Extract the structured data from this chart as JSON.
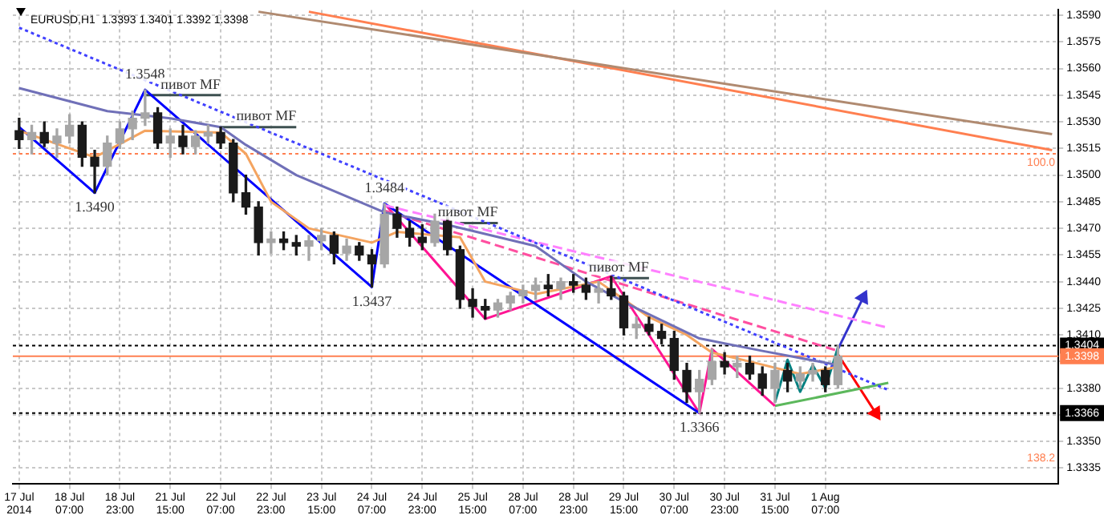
{
  "chart_data": {
    "type": "candlestick",
    "title": "EURUSD,H1  1.3393 1.3401 1.3392 1.3398",
    "colors": [
      "#1a1a1a",
      "#a6a6a6",
      "#1a1a1a",
      "#a6a6a6",
      "#a6a6a6",
      "#1a1a1a",
      "#1a1a1a",
      "#a6a6a6",
      "#a6a6a6",
      "#a6a6a6",
      "#a6a6a6",
      "#1a1a1a",
      "#a6a6a6",
      "#1a1a1a",
      "#a6a6a6",
      "#a6a6a6",
      "#1a1a1a",
      "#1a1a1a",
      "#1a1a1a",
      "#1a1a1a",
      "#a6a6a6",
      "#1a1a1a",
      "#1a1a1a",
      "#a6a6a6",
      "#a6a6a6",
      "#1a1a1a",
      "#a6a6a6",
      "#1a1a1a",
      "#1a1a1a",
      "#a6a6a6",
      "#1a1a1a",
      "#1a1a1a",
      "#1a1a1a",
      "#a6a6a6",
      "#1a1a1a",
      "#1a1a1a",
      "#1a1a1a",
      "#1a1a1a",
      "#a6a6a6",
      "#a6a6a6",
      "#a6a6a6",
      "#a6a6a6",
      "#1a1a1a",
      "#a6a6a6",
      "#1a1a1a",
      "#1a1a1a",
      "#a6a6a6",
      "#1a1a1a",
      "#1a1a1a",
      "#a6a6a6",
      "#1a1a1a",
      "#1a1a1a",
      "#1a1a1a",
      "#1a1a1a",
      "#a6a6a6",
      "#a6a6a6",
      "#1a1a1a",
      "#a6a6a6",
      "#1a1a1a",
      "#1a1a1a",
      "#a6a6a6",
      "#1a1a1a",
      "#a6a6a6",
      "#a6a6a6",
      "#1a1a1a",
      "#a6a6a6",
      null,
      null,
      null,
      null,
      null,
      null,
      null,
      null,
      null,
      null,
      null,
      null,
      null,
      null,
      null,
      null,
      null
    ],
    "categories": [
      "17 Jul 2014",
      null,
      null,
      null,
      "18 Jul 07:00",
      null,
      null,
      null,
      "18 Jul 23:00",
      null,
      null,
      null,
      "21 Jul 15:00",
      null,
      null,
      null,
      "22 Jul 07:00",
      null,
      null,
      null,
      "22 Jul 23:00",
      null,
      null,
      null,
      "23 Jul 15:00",
      null,
      null,
      null,
      "24 Jul 07:00",
      null,
      null,
      null,
      "24 Jul 23:00",
      null,
      null,
      null,
      "25 Jul 15:00",
      null,
      null,
      null,
      "28 Jul 07:00",
      null,
      null,
      null,
      "28 Jul 23:00",
      null,
      null,
      null,
      "29 Jul 15:00",
      null,
      null,
      null,
      "30 Jul 07:00",
      null,
      null,
      null,
      "30 Jul 23:00",
      null,
      null,
      null,
      "31 Jul 15:00",
      null,
      null,
      null,
      "1 Aug 07:00",
      null,
      null,
      null,
      null,
      null,
      null,
      null,
      null,
      null,
      null,
      null,
      null,
      null,
      null,
      null,
      null,
      null,
      null
    ],
    "ohlc": [
      [
        1.3525,
        1.3532,
        1.3515,
        1.352
      ],
      [
        1.352,
        1.3528,
        1.3512,
        1.3524
      ],
      [
        1.3524,
        1.353,
        1.3516,
        1.3518
      ],
      [
        1.3518,
        1.3526,
        1.351,
        1.3522
      ],
      [
        1.3522,
        1.3534,
        1.3518,
        1.3528
      ],
      [
        1.3528,
        1.353,
        1.3505,
        1.351
      ],
      [
        1.351,
        1.3514,
        1.349,
        1.3505
      ],
      [
        1.3505,
        1.3522,
        1.35,
        1.3518
      ],
      [
        1.3518,
        1.353,
        1.3515,
        1.3526
      ],
      [
        1.3526,
        1.3536,
        1.352,
        1.3532
      ],
      [
        1.3532,
        1.3548,
        1.3528,
        1.3535
      ],
      [
        1.3535,
        1.3538,
        1.3515,
        1.3518
      ],
      [
        1.3518,
        1.3526,
        1.351,
        1.3522
      ],
      [
        1.3522,
        1.3528,
        1.3512,
        1.3516
      ],
      [
        1.3516,
        1.3525,
        1.3512,
        1.3522
      ],
      [
        1.3522,
        1.3528,
        1.3518,
        1.3524
      ],
      [
        1.3524,
        1.3527,
        1.3515,
        1.3518
      ],
      [
        1.3518,
        1.352,
        1.3485,
        1.349
      ],
      [
        1.349,
        1.35,
        1.3478,
        1.3482
      ],
      [
        1.3482,
        1.3485,
        1.3455,
        1.3462
      ],
      [
        1.3462,
        1.3468,
        1.3456,
        1.3464
      ],
      [
        1.3464,
        1.3468,
        1.3458,
        1.3462
      ],
      [
        1.3462,
        1.3466,
        1.3455,
        1.346
      ],
      [
        1.346,
        1.3466,
        1.3452,
        1.3463
      ],
      [
        1.3463,
        1.347,
        1.3458,
        1.3466
      ],
      [
        1.3466,
        1.3468,
        1.345,
        1.3456
      ],
      [
        1.3456,
        1.3464,
        1.3452,
        1.346
      ],
      [
        1.346,
        1.3462,
        1.3452,
        1.3455
      ],
      [
        1.3455,
        1.3458,
        1.3437,
        1.345
      ],
      [
        1.345,
        1.3484,
        1.3448,
        1.3478
      ],
      [
        1.3478,
        1.3482,
        1.3465,
        1.347
      ],
      [
        1.347,
        1.3474,
        1.346,
        1.3465
      ],
      [
        1.3465,
        1.3472,
        1.3458,
        1.3462
      ],
      [
        1.3462,
        1.3478,
        1.346,
        1.3474
      ],
      [
        1.3474,
        1.3476,
        1.3455,
        1.3458
      ],
      [
        1.3458,
        1.346,
        1.3425,
        1.343
      ],
      [
        1.343,
        1.3436,
        1.342,
        1.3426
      ],
      [
        1.3426,
        1.343,
        1.3419,
        1.3424
      ],
      [
        1.3424,
        1.343,
        1.342,
        1.3428
      ],
      [
        1.3428,
        1.3434,
        1.3424,
        1.3432
      ],
      [
        1.3432,
        1.3438,
        1.3428,
        1.3435
      ],
      [
        1.3435,
        1.3442,
        1.343,
        1.3438
      ],
      [
        1.3438,
        1.3444,
        1.3432,
        1.3436
      ],
      [
        1.3436,
        1.3442,
        1.343,
        1.344
      ],
      [
        1.344,
        1.3444,
        1.3434,
        1.3438
      ],
      [
        1.3438,
        1.3442,
        1.343,
        1.3434
      ],
      [
        1.3434,
        1.344,
        1.3428,
        1.3436
      ],
      [
        1.3436,
        1.3443,
        1.343,
        1.3432
      ],
      [
        1.3432,
        1.3434,
        1.341,
        1.3414
      ],
      [
        1.3414,
        1.342,
        1.3408,
        1.3416
      ],
      [
        1.3416,
        1.342,
        1.341,
        1.3412
      ],
      [
        1.3412,
        1.3416,
        1.3405,
        1.3408
      ],
      [
        1.3408,
        1.3412,
        1.3385,
        1.339
      ],
      [
        1.339,
        1.3394,
        1.3372,
        1.3378
      ],
      [
        1.3378,
        1.339,
        1.3366,
        1.3385
      ],
      [
        1.3385,
        1.3402,
        1.3382,
        1.3395
      ],
      [
        1.3395,
        1.34,
        1.3388,
        1.3392
      ],
      [
        1.3392,
        1.3398,
        1.3386,
        1.3394
      ],
      [
        1.3394,
        1.3398,
        1.3385,
        1.3388
      ],
      [
        1.3388,
        1.3392,
        1.3376,
        1.338
      ],
      [
        1.338,
        1.3394,
        1.3372,
        1.339
      ],
      [
        1.339,
        1.3394,
        1.3378,
        1.3384
      ],
      [
        1.3384,
        1.3392,
        1.338,
        1.3388
      ],
      [
        1.3388,
        1.3394,
        1.3384,
        1.339
      ],
      [
        1.339,
        1.3392,
        1.3378,
        1.3382
      ],
      [
        1.3382,
        1.3404,
        1.338,
        1.3398
      ],
      null,
      null,
      null,
      null,
      null,
      null,
      null,
      null,
      null,
      null,
      null,
      null,
      null,
      null,
      null,
      null,
      null
    ],
    "ylim": [
      1.3326,
      1.3593
    ],
    "yticks": [
      {
        "value": 1.3335,
        "label": "1.3335"
      },
      {
        "value": 1.335,
        "label": "1.3350"
      },
      {
        "value": 1.3365,
        "label": null
      },
      {
        "value": 1.338,
        "label": "1.3380"
      },
      {
        "value": 1.3395,
        "label": null
      },
      {
        "value": 1.341,
        "label": "1.3410"
      },
      {
        "value": 1.3425,
        "label": "1.3425"
      },
      {
        "value": 1.344,
        "label": "1.3440"
      },
      {
        "value": 1.3455,
        "label": "1.3455"
      },
      {
        "value": 1.347,
        "label": "1.3470"
      },
      {
        "value": 1.3485,
        "label": "1.3485"
      },
      {
        "value": 1.35,
        "label": "1.3500"
      },
      {
        "value": 1.3515,
        "label": "1.3515"
      },
      {
        "value": 1.353,
        "label": "1.3530"
      },
      {
        "value": 1.3545,
        "label": "1.3545"
      },
      {
        "value": 1.356,
        "label": "1.3560"
      },
      {
        "value": 1.3575,
        "label": "1.3575"
      },
      {
        "value": 1.359,
        "label": "1.3590"
      }
    ],
    "grid": true,
    "series": [
      {
        "type": "line",
        "color": "#7070b8",
        "values": [
          1.3549,
          null,
          null,
          null,
          null,
          null,
          null,
          1.3536,
          null,
          null,
          null,
          null,
          1.3532,
          null,
          null,
          null,
          1.3527,
          null,
          1.3517,
          null,
          null,
          null,
          1.35,
          null,
          null,
          null,
          null,
          null,
          null,
          1.3479,
          null,
          null,
          null,
          null,
          1.3472,
          null,
          null,
          null,
          null,
          null,
          null,
          1.346,
          null,
          null,
          null,
          1.344,
          null,
          null,
          null,
          1.3425,
          null,
          null,
          null,
          null,
          1.3408,
          null,
          null,
          null,
          null,
          1.3401,
          null,
          null,
          null,
          null,
          null,
          1.3393,
          null,
          null,
          null,
          null,
          null,
          null,
          null,
          null,
          null,
          null,
          null,
          null,
          null,
          null,
          null,
          null,
          null
        ]
      },
      {
        "type": "line",
        "color": "#f4a460",
        "values": [
          1.3525,
          null,
          null,
          null,
          null,
          null,
          1.351,
          null,
          null,
          null,
          1.3525,
          null,
          null,
          null,
          null,
          null,
          1.3524,
          null,
          1.3512,
          null,
          1.3485,
          null,
          null,
          1.347,
          null,
          null,
          null,
          null,
          1.3462,
          null,
          1.3468,
          null,
          null,
          null,
          null,
          1.3465,
          null,
          1.344,
          null,
          null,
          null,
          1.3433,
          null,
          null,
          null,
          null,
          1.344,
          null,
          null,
          null,
          1.342,
          null,
          null,
          1.341,
          null,
          1.34,
          null,
          null,
          1.3395,
          null,
          null,
          null,
          1.3388,
          null,
          null,
          1.3392,
          null,
          null,
          null,
          null,
          null,
          null,
          null,
          null,
          null,
          null,
          null,
          null,
          null,
          null,
          null,
          null,
          null
        ]
      },
      {
        "type": "line",
        "color": "#4040ff",
        "line_style": "dotted",
        "values": [
          1.3583,
          null,
          null,
          null,
          null,
          null,
          null,
          null,
          null,
          null,
          null,
          null,
          null,
          null,
          null,
          null,
          null,
          null,
          null,
          null,
          null,
          null,
          null,
          null,
          null,
          null,
          null,
          null,
          null,
          null,
          null,
          null,
          null,
          null,
          null,
          null,
          null,
          null,
          null,
          null,
          null,
          null,
          null,
          null,
          null,
          null,
          null,
          null,
          null,
          null,
          null,
          null,
          null,
          null,
          null,
          null,
          null,
          null,
          null,
          null,
          null,
          null,
          null,
          null,
          null,
          null,
          null,
          null,
          null,
          1.3379,
          null,
          null,
          null,
          null,
          null,
          null,
          null,
          null,
          null,
          null,
          null,
          null,
          null
        ]
      },
      {
        "type": "line",
        "color": "#ff80ff",
        "line_style": "dashed",
        "values": [
          null,
          null,
          null,
          null,
          null,
          null,
          null,
          null,
          null,
          null,
          null,
          null,
          null,
          null,
          null,
          null,
          null,
          null,
          null,
          null,
          null,
          null,
          null,
          null,
          null,
          null,
          null,
          null,
          null,
          1.3483,
          null,
          null,
          null,
          null,
          null,
          null,
          null,
          null,
          null,
          null,
          null,
          null,
          null,
          null,
          null,
          null,
          null,
          null,
          null,
          null,
          null,
          null,
          null,
          null,
          null,
          null,
          null,
          null,
          null,
          null,
          null,
          null,
          null,
          null,
          null,
          null,
          null,
          null,
          null,
          1.3414,
          null,
          null,
          null,
          null,
          null,
          null,
          null,
          null,
          null,
          null,
          null,
          null,
          null
        ]
      },
      {
        "type": "line",
        "color": "#ff4fa0",
        "line_style": "dashed",
        "values": [
          null,
          null,
          null,
          null,
          null,
          null,
          null,
          null,
          null,
          null,
          null,
          null,
          null,
          null,
          null,
          null,
          null,
          null,
          null,
          null,
          null,
          null,
          null,
          null,
          null,
          null,
          null,
          null,
          null,
          1.348,
          null,
          null,
          null,
          null,
          null,
          null,
          null,
          null,
          null,
          null,
          null,
          null,
          null,
          null,
          null,
          null,
          null,
          null,
          null,
          null,
          null,
          null,
          null,
          null,
          null,
          null,
          null,
          null,
          null,
          null,
          null,
          null,
          null,
          null,
          null,
          1.3401,
          null,
          null,
          null,
          null,
          null,
          null,
          null,
          null,
          null,
          null,
          null,
          null,
          null,
          null,
          null,
          null,
          null
        ]
      },
      {
        "type": "line",
        "color": "#b08a70",
        "values": [
          null,
          null,
          null,
          null,
          null,
          null,
          null,
          null,
          null,
          null,
          null,
          null,
          null,
          null,
          null,
          null,
          null,
          null,
          null,
          1.3592,
          null,
          null,
          null,
          null,
          null,
          null,
          null,
          null,
          null,
          null,
          null,
          null,
          null,
          null,
          null,
          null,
          null,
          null,
          null,
          null,
          null,
          null,
          null,
          null,
          null,
          null,
          null,
          null,
          null,
          null,
          null,
          null,
          null,
          null,
          null,
          null,
          null,
          null,
          null,
          null,
          null,
          null,
          null,
          null,
          null,
          null,
          null,
          null,
          null,
          null,
          null,
          null,
          null,
          null,
          null,
          null,
          null,
          null,
          null,
          null,
          null,
          null,
          1.3523
        ]
      },
      {
        "type": "line",
        "color": "#ff7f50",
        "values": [
          null,
          null,
          null,
          null,
          null,
          null,
          null,
          null,
          null,
          null,
          null,
          null,
          null,
          null,
          null,
          null,
          null,
          null,
          null,
          null,
          null,
          null,
          null,
          1.3592,
          null,
          null,
          null,
          null,
          null,
          null,
          null,
          null,
          null,
          null,
          null,
          null,
          null,
          null,
          null,
          null,
          null,
          null,
          null,
          null,
          null,
          null,
          null,
          null,
          null,
          null,
          null,
          null,
          null,
          null,
          null,
          null,
          null,
          null,
          null,
          null,
          null,
          null,
          null,
          null,
          null,
          null,
          null,
          null,
          null,
          null,
          null,
          null,
          null,
          null,
          null,
          null,
          null,
          null,
          null,
          null,
          null,
          null,
          1.3514
        ]
      },
      {
        "type": "line",
        "color": "#0000ff",
        "values": [
          1.3527,
          null,
          null,
          null,
          null,
          null,
          1.349,
          null,
          null,
          null,
          1.3548,
          null,
          null,
          null,
          null,
          null,
          null,
          null,
          null,
          null,
          null,
          null,
          null,
          null,
          null,
          null,
          null,
          null,
          1.3437,
          1.3484,
          null,
          null,
          null,
          null,
          null,
          null,
          null,
          null,
          null,
          null,
          null,
          null,
          null,
          null,
          null,
          null,
          null,
          null,
          null,
          null,
          null,
          null,
          null,
          null,
          1.3366,
          null,
          null,
          null,
          null,
          null,
          null,
          null,
          null,
          null,
          null,
          null,
          null,
          null,
          null,
          null,
          null,
          null,
          null,
          null,
          null,
          null,
          null,
          null,
          null,
          null,
          null,
          null,
          null
        ],
        "value_labels": [
          null,
          null,
          null,
          null,
          null,
          null,
          "1.3490",
          null,
          null,
          null,
          "1.3548",
          null,
          null,
          null,
          null,
          null,
          null,
          null,
          null,
          null,
          null,
          null,
          null,
          null,
          null,
          null,
          null,
          null,
          "1.3437",
          "1.3484",
          null,
          null,
          null,
          null,
          null,
          null,
          null,
          null,
          null,
          null,
          null,
          null,
          null,
          null,
          null,
          null,
          null,
          null,
          null,
          null,
          null,
          null,
          null,
          null,
          "1.3366",
          null,
          null,
          null,
          null,
          null,
          null,
          null,
          null,
          null,
          null,
          null,
          null,
          null,
          null,
          null,
          null,
          null,
          null,
          null,
          null,
          null,
          null,
          null,
          null,
          null,
          null,
          null,
          null
        ]
      },
      {
        "type": "line",
        "color": "#ff1493",
        "values": [
          null,
          null,
          null,
          null,
          null,
          null,
          null,
          null,
          null,
          null,
          null,
          null,
          null,
          null,
          null,
          null,
          null,
          null,
          null,
          null,
          null,
          null,
          null,
          null,
          null,
          null,
          null,
          null,
          null,
          1.3484,
          null,
          null,
          null,
          null,
          null,
          null,
          null,
          1.3419,
          null,
          null,
          null,
          null,
          null,
          null,
          null,
          null,
          null,
          1.3443,
          null,
          null,
          null,
          null,
          null,
          null,
          1.3366,
          1.3402,
          null,
          null,
          null,
          null,
          1.337,
          null,
          null,
          null,
          null,
          null,
          null,
          null,
          null,
          null,
          null,
          null,
          null,
          null,
          null,
          null,
          null,
          null,
          null,
          null,
          null,
          null,
          null
        ]
      },
      {
        "type": "line",
        "color": "#5cb85c",
        "values": [
          null,
          null,
          null,
          null,
          null,
          null,
          null,
          null,
          null,
          null,
          null,
          null,
          null,
          null,
          null,
          null,
          null,
          null,
          null,
          null,
          null,
          null,
          null,
          null,
          null,
          null,
          null,
          null,
          null,
          null,
          null,
          null,
          null,
          null,
          null,
          null,
          null,
          null,
          null,
          null,
          null,
          null,
          null,
          null,
          null,
          null,
          null,
          null,
          null,
          null,
          null,
          null,
          null,
          null,
          null,
          null,
          null,
          null,
          null,
          null,
          1.337,
          null,
          null,
          null,
          null,
          null,
          null,
          null,
          null,
          1.3383,
          null,
          null,
          null,
          null,
          null,
          null,
          null,
          null,
          null,
          null,
          null,
          null,
          null
        ]
      },
      {
        "type": "line",
        "color": "#008080",
        "values": [
          null,
          null,
          null,
          null,
          null,
          null,
          null,
          null,
          null,
          null,
          null,
          null,
          null,
          null,
          null,
          null,
          null,
          null,
          null,
          null,
          null,
          null,
          null,
          null,
          null,
          null,
          null,
          null,
          null,
          null,
          null,
          null,
          null,
          null,
          null,
          null,
          null,
          null,
          null,
          null,
          null,
          null,
          null,
          null,
          null,
          null,
          null,
          null,
          null,
          null,
          null,
          null,
          null,
          null,
          null,
          null,
          null,
          null,
          null,
          null,
          1.3372,
          1.3396,
          1.3378,
          1.3393,
          1.338,
          1.3403,
          null,
          null,
          null,
          null,
          null,
          null,
          null,
          null,
          null,
          null,
          null,
          null,
          null,
          null,
          null,
          null,
          null
        ]
      },
      {
        "type": "line",
        "name": "пивот MF",
        "color": "#3d5050",
        "values": [
          null,
          null,
          null,
          null,
          null,
          null,
          null,
          null,
          null,
          null,
          1.3545,
          null,
          null,
          null,
          null,
          null,
          1.3545,
          null,
          null,
          null,
          null,
          null,
          null,
          null,
          null,
          null,
          null,
          null,
          null,
          null,
          null,
          null,
          null,
          null,
          null,
          null,
          null,
          null,
          null,
          null,
          null,
          null,
          null,
          null,
          null,
          null,
          null,
          null,
          null,
          null,
          null,
          null,
          null,
          null,
          null,
          null,
          null,
          null,
          null,
          null,
          null,
          null,
          null,
          null,
          null,
          null,
          null,
          null,
          null,
          null,
          null,
          null,
          null,
          null,
          null,
          null,
          null,
          null,
          null,
          null,
          null,
          null,
          null
        ]
      },
      {
        "type": "line",
        "name": "пивот MF",
        "color": "#3d5050",
        "values": [
          null,
          null,
          null,
          null,
          null,
          null,
          null,
          null,
          null,
          null,
          null,
          null,
          null,
          null,
          null,
          null,
          1.3527,
          null,
          null,
          null,
          null,
          null,
          1.3527,
          null,
          null,
          null,
          null,
          null,
          null,
          null,
          null,
          null,
          null,
          null,
          null,
          null,
          null,
          null,
          null,
          null,
          null,
          null,
          null,
          null,
          null,
          null,
          null,
          null,
          null,
          null,
          null,
          null,
          null,
          null,
          null,
          null,
          null,
          null,
          null,
          null,
          null,
          null,
          null,
          null,
          null,
          null,
          null,
          null,
          null,
          null,
          null,
          null,
          null,
          null,
          null,
          null,
          null,
          null,
          null,
          null,
          null,
          null,
          null
        ]
      },
      {
        "type": "line",
        "name": "пивот MF",
        "color": "#3d5050",
        "values": [
          null,
          null,
          null,
          null,
          null,
          null,
          null,
          null,
          null,
          null,
          null,
          null,
          null,
          null,
          null,
          null,
          null,
          null,
          null,
          null,
          null,
          null,
          null,
          null,
          null,
          null,
          null,
          null,
          null,
          null,
          null,
          null,
          null,
          null,
          null,
          1.3473,
          null,
          null,
          1.3473,
          null,
          null,
          null,
          null,
          null,
          null,
          null,
          null,
          null,
          null,
          null,
          null,
          null,
          null,
          null,
          null,
          null,
          null,
          null,
          null,
          null,
          null,
          null,
          null,
          null,
          null,
          null,
          null,
          null,
          null,
          null,
          null,
          null,
          null,
          null,
          null,
          null,
          null,
          null,
          null,
          null,
          null,
          null,
          null
        ]
      },
      {
        "type": "line",
        "name": "пивот MF",
        "color": "#3d5050",
        "values": [
          null,
          null,
          null,
          null,
          null,
          null,
          null,
          null,
          null,
          null,
          null,
          null,
          null,
          null,
          null,
          null,
          null,
          null,
          null,
          null,
          null,
          null,
          null,
          null,
          null,
          null,
          null,
          null,
          null,
          null,
          null,
          null,
          null,
          null,
          null,
          null,
          null,
          null,
          null,
          null,
          null,
          null,
          null,
          null,
          null,
          null,
          null,
          1.3442,
          null,
          null,
          1.3442,
          null,
          null,
          null,
          null,
          null,
          null,
          null,
          null,
          null,
          null,
          null,
          null,
          null,
          null,
          null,
          null,
          null,
          null,
          null,
          null,
          null,
          null,
          null,
          null,
          null,
          null,
          null,
          null,
          null,
          null,
          null,
          null
        ]
      },
      {
        "type": "line",
        "color": "#3333cc",
        "marker": "triangle",
        "values": [
          null,
          null,
          null,
          null,
          null,
          null,
          null,
          null,
          null,
          null,
          null,
          null,
          null,
          null,
          null,
          null,
          null,
          null,
          null,
          null,
          null,
          null,
          null,
          null,
          null,
          null,
          null,
          null,
          null,
          null,
          null,
          null,
          null,
          null,
          null,
          null,
          null,
          null,
          null,
          null,
          null,
          null,
          null,
          null,
          null,
          null,
          null,
          null,
          null,
          null,
          null,
          null,
          null,
          null,
          null,
          null,
          null,
          null,
          null,
          null,
          null,
          null,
          null,
          null,
          null,
          1.3402,
          null,
          1.3431,
          null,
          null,
          null,
          null,
          null,
          null,
          null,
          null,
          null,
          null,
          null,
          null,
          null,
          null,
          null
        ]
      },
      {
        "type": "line",
        "color": "#ff0000",
        "marker": "triangle",
        "values": [
          null,
          null,
          null,
          null,
          null,
          null,
          null,
          null,
          null,
          null,
          null,
          null,
          null,
          null,
          null,
          null,
          null,
          null,
          null,
          null,
          null,
          null,
          null,
          null,
          null,
          null,
          null,
          null,
          null,
          null,
          null,
          null,
          null,
          null,
          null,
          null,
          null,
          null,
          null,
          null,
          null,
          null,
          null,
          null,
          null,
          null,
          null,
          null,
          null,
          null,
          null,
          null,
          null,
          null,
          null,
          null,
          null,
          null,
          null,
          null,
          null,
          null,
          null,
          null,
          null,
          1.3399,
          null,
          null,
          1.3366,
          null,
          null,
          null,
          null,
          null,
          null,
          null,
          null,
          null,
          null,
          null,
          null,
          null,
          null
        ]
      }
    ],
    "ref_lines": [
      {
        "axis": "y",
        "value": 1.3512,
        "color": "#ff7f50",
        "line_style": "dotted"
      },
      {
        "axis": "y",
        "value": 1.3404,
        "label": "1.3404",
        "color": "#000000",
        "line_style": "dotted"
      },
      {
        "axis": "y",
        "value": 1.3398,
        "label": "1.3398",
        "color": "#ff7f50",
        "line_style": "solid"
      },
      {
        "axis": "y",
        "value": 1.3366,
        "label": "1.3366",
        "color": "#000000",
        "line_style": "dotted"
      }
    ],
    "annotations": [
      {
        "text": "100.0",
        "y": 1.3512
      },
      "138.2"
    ]
  }
}
